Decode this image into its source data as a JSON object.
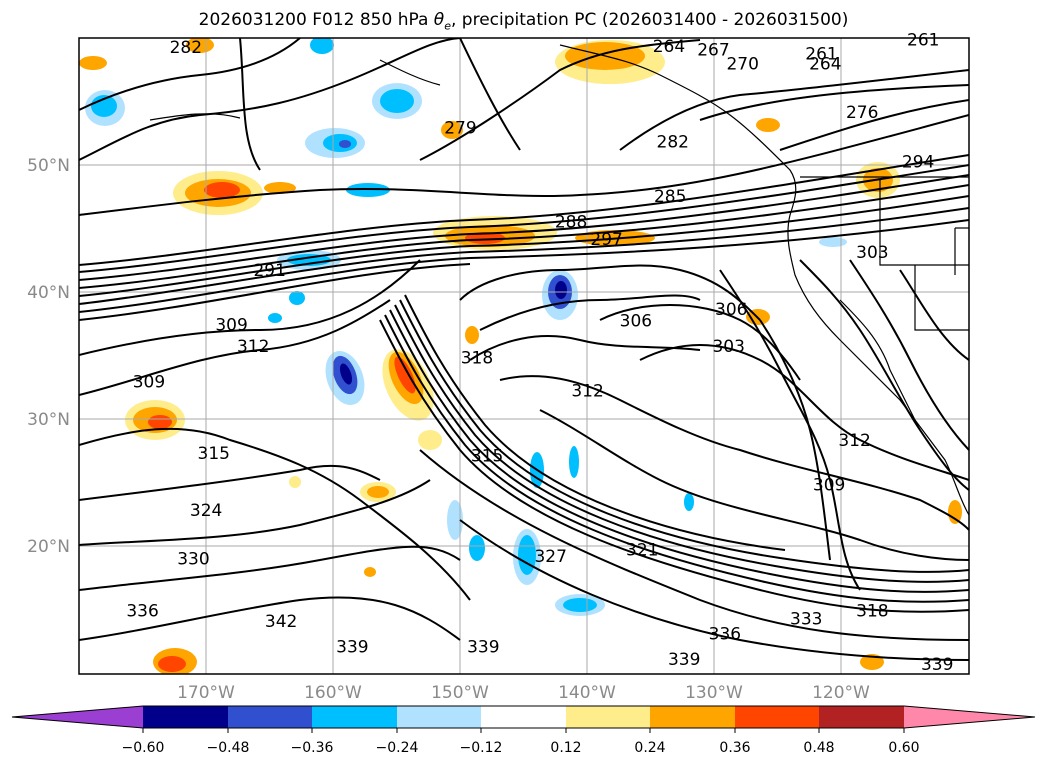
{
  "title": {
    "prefix": "2026031200 F012 850 hPa ",
    "theta": "θ",
    "sub": "e",
    "suffix": ", precipitation PC (2026031400 - 2026031500)"
  },
  "axes": {
    "lat_labels": [
      "50°N",
      "40°N",
      "30°N",
      "20°N"
    ],
    "lon_labels": [
      "170°W",
      "160°W",
      "150°W",
      "140°W",
      "130°W",
      "120°W"
    ]
  },
  "contour_labels": [
    {
      "text": "282",
      "lon": -171.6,
      "lat": 59.2
    },
    {
      "text": "264",
      "lon": -133.6,
      "lat": 59.3
    },
    {
      "text": "267",
      "lon": -130.1,
      "lat": 59.0
    },
    {
      "text": "270",
      "lon": -127.8,
      "lat": 57.9
    },
    {
      "text": "261",
      "lon": -121.6,
      "lat": 58.7
    },
    {
      "text": "264",
      "lon": -121.3,
      "lat": 57.9
    },
    {
      "text": "261",
      "lon": -113.6,
      "lat": 59.8
    },
    {
      "text": "279",
      "lon": -150.0,
      "lat": 52.9
    },
    {
      "text": "282",
      "lon": -133.3,
      "lat": 51.8
    },
    {
      "text": "276",
      "lon": -118.4,
      "lat": 54.1
    },
    {
      "text": "294",
      "lon": -114.0,
      "lat": 50.2
    },
    {
      "text": "285",
      "lon": -133.5,
      "lat": 47.5
    },
    {
      "text": "288",
      "lon": -141.3,
      "lat": 45.5
    },
    {
      "text": "297",
      "lon": -138.5,
      "lat": 44.1
    },
    {
      "text": "303",
      "lon": -117.6,
      "lat": 43.1
    },
    {
      "text": "291",
      "lon": -165.0,
      "lat": 41.7
    },
    {
      "text": "306",
      "lon": -136.2,
      "lat": 37.7
    },
    {
      "text": "306",
      "lon": -128.7,
      "lat": 38.6
    },
    {
      "text": "303",
      "lon": -128.9,
      "lat": 35.7
    },
    {
      "text": "309",
      "lon": -168.0,
      "lat": 37.4
    },
    {
      "text": "312",
      "lon": -166.3,
      "lat": 35.7
    },
    {
      "text": "318",
      "lon": -148.7,
      "lat": 34.8
    },
    {
      "text": "309",
      "lon": -174.5,
      "lat": 32.9
    },
    {
      "text": "312",
      "lon": -140.0,
      "lat": 32.2
    },
    {
      "text": "312",
      "lon": -119.0,
      "lat": 28.3
    },
    {
      "text": "315",
      "lon": -169.4,
      "lat": 27.3
    },
    {
      "text": "315",
      "lon": -147.9,
      "lat": 27.1
    },
    {
      "text": "309",
      "lon": -121.0,
      "lat": 24.8
    },
    {
      "text": "324",
      "lon": -170.0,
      "lat": 22.8
    },
    {
      "text": "321",
      "lon": -135.7,
      "lat": 19.7
    },
    {
      "text": "327",
      "lon": -142.9,
      "lat": 19.2
    },
    {
      "text": "330",
      "lon": -171.0,
      "lat": 19.0
    },
    {
      "text": "336",
      "lon": -175.0,
      "lat": 14.9
    },
    {
      "text": "342",
      "lon": -164.1,
      "lat": 14.1
    },
    {
      "text": "318",
      "lon": -117.6,
      "lat": 14.9
    },
    {
      "text": "333",
      "lon": -122.8,
      "lat": 14.3
    },
    {
      "text": "336",
      "lon": -129.2,
      "lat": 13.1
    },
    {
      "text": "339",
      "lon": -158.5,
      "lat": 12.1
    },
    {
      "text": "339",
      "lon": -148.2,
      "lat": 12.1
    },
    {
      "text": "339",
      "lon": -132.4,
      "lat": 11.1
    },
    {
      "text": "339",
      "lon": -112.5,
      "lat": 10.7
    }
  ],
  "colorbar": {
    "ticks": [
      "−0.60",
      "−0.48",
      "−0.36",
      "−0.24",
      "−0.12",
      "0.12",
      "0.24",
      "0.36",
      "0.48",
      "0.60"
    ],
    "colors": [
      "#9a3fd1",
      "#00008b",
      "#3050d0",
      "#00bfff",
      "#b0e2ff",
      "#ffffff",
      "#ffec8b",
      "#ffa500",
      "#ff4500",
      "#b22222",
      "#ff88aa"
    ]
  },
  "precip_colors": {
    "neg_light": "#b0e2ff",
    "neg_mid": "#00bfff",
    "neg_strong": "#3050d0",
    "neg_max": "#00008b",
    "pos_light": "#ffec8b",
    "pos_mid": "#ffa500",
    "pos_strong": "#ff4500"
  }
}
